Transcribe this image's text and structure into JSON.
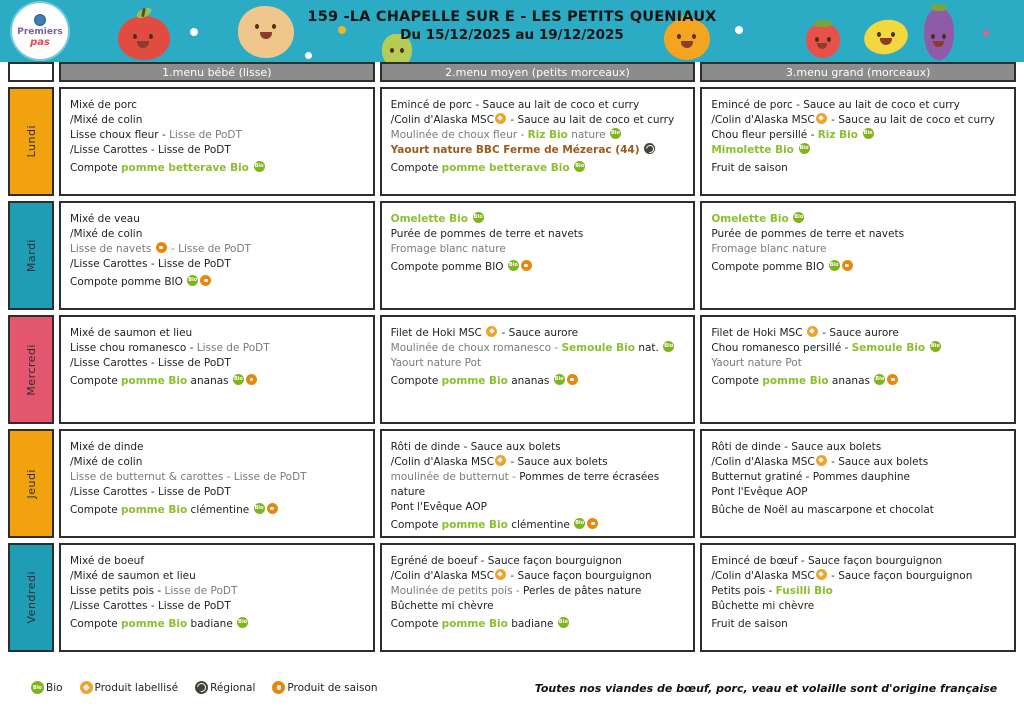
{
  "header": {
    "title": "159 -LA CHAPELLE SUR E - LES PETITS QUENIAUX",
    "subtitle": "Du 15/12/2025 au 19/12/2025",
    "logo": {
      "line1": "Premiers",
      "line2": "pas"
    }
  },
  "columns": [
    "1.menu bébé (lisse)",
    "2.menu moyen (petits morceaux)",
    "3.menu grand (morceaux)"
  ],
  "days": [
    {
      "name": "Lundi",
      "color": "#F2A20E",
      "menus": [
        [
          [
            {
              "t": "Mixé de porc"
            }
          ],
          [
            {
              "t": "/Mixé de colin"
            }
          ],
          [
            {
              "t": "Lisse choux fleur - "
            },
            {
              "t": "Lisse de PoDT",
              "s": "g"
            }
          ],
          [
            {
              "t": "/Lisse Carottes - Lisse de PoDT"
            }
          ],
          [
            {
              "t": "Compote "
            },
            {
              "t": "pomme betterave Bio ",
              "s": "bio"
            },
            {
              "i": "bio"
            }
          ]
        ],
        [
          [
            {
              "t": "Emincé de porc - Sauce au lait de coco et curry"
            }
          ],
          [
            {
              "t": "/Colin d'Alaska MSC"
            },
            {
              "i": "label"
            },
            {
              "t": " - Sauce au lait de coco et curry"
            }
          ],
          [
            {
              "t": "Moulinée de choux fleur - ",
              "s": "g"
            },
            {
              "t": "Riz Bio",
              "s": "bio"
            },
            {
              "t": " nature ",
              "s": "g"
            },
            {
              "i": "bio"
            }
          ],
          [
            {
              "t": "Yaourt nature BBC Ferme de Mézerac (44) ",
              "s": "brown"
            },
            {
              "i": "regional"
            }
          ],
          [
            {
              "t": "Compote "
            },
            {
              "t": "pomme betterave Bio ",
              "s": "bio"
            },
            {
              "i": "bio"
            }
          ]
        ],
        [
          [
            {
              "t": "Emincé de porc - Sauce au lait de coco et curry"
            }
          ],
          [
            {
              "t": "/Colin d'Alaska MSC"
            },
            {
              "i": "label"
            },
            {
              "t": " - Sauce au lait de coco et curry"
            }
          ],
          [
            {
              "t": "Chou fleur persillé - "
            },
            {
              "t": "Riz Bio ",
              "s": "bio"
            },
            {
              "i": "bio"
            }
          ],
          [
            {
              "t": "Mimolette Bio ",
              "s": "bio"
            },
            {
              "i": "bio"
            }
          ],
          [
            {
              "t": "Fruit de saison"
            }
          ]
        ]
      ]
    },
    {
      "name": "Mardi",
      "color": "#1E9DB5",
      "menus": [
        [
          [
            {
              "t": "Mixé de veau"
            }
          ],
          [
            {
              "t": "/Mixé de colin"
            }
          ],
          [
            {
              "t": "Lisse de navets ",
              "s": "g"
            },
            {
              "i": "season"
            },
            {
              "t": " - Lisse de PoDT",
              "s": "g"
            }
          ],
          [
            {
              "t": "/Lisse Carottes - Lisse de PoDT"
            }
          ],
          [
            {
              "t": "Compote pomme BIO "
            },
            {
              "i": "bio"
            },
            {
              "i": "season"
            }
          ]
        ],
        [
          [
            {
              "t": "Omelette Bio ",
              "s": "bio"
            },
            {
              "i": "bio"
            }
          ],
          [
            {
              "t": "Purée de pommes de terre et navets"
            }
          ],
          [
            {
              "t": "Fromage blanc nature",
              "s": "g"
            }
          ],
          [
            {
              "t": "Compote pomme BIO "
            },
            {
              "i": "bio"
            },
            {
              "i": "season"
            }
          ]
        ],
        [
          [
            {
              "t": "Omelette Bio ",
              "s": "bio"
            },
            {
              "i": "bio"
            }
          ],
          [
            {
              "t": "Purée de pommes de terre et navets"
            }
          ],
          [
            {
              "t": "Fromage blanc nature",
              "s": "g"
            }
          ],
          [
            {
              "t": "Compote pomme BIO "
            },
            {
              "i": "bio"
            },
            {
              "i": "season"
            }
          ]
        ]
      ]
    },
    {
      "name": "Mercredi",
      "color": "#E4556E",
      "menus": [
        [
          [
            {
              "t": "Mixé de saumon et lieu"
            }
          ],
          [
            {
              "t": "Lisse chou romanesco - "
            },
            {
              "t": "Lisse de PoDT",
              "s": "g"
            }
          ],
          [
            {
              "t": "/Lisse Carottes - Lisse de PoDT"
            }
          ],
          [
            {
              "t": "Compote "
            },
            {
              "t": "pomme Bio",
              "s": "bio"
            },
            {
              "t": " ananas "
            },
            {
              "i": "bio"
            },
            {
              "i": "season"
            }
          ]
        ],
        [
          [
            {
              "t": "Filet de Hoki MSC "
            },
            {
              "i": "label"
            },
            {
              "t": " - Sauce aurore"
            }
          ],
          [
            {
              "t": "Moulinée de choux romanesco - ",
              "s": "g"
            },
            {
              "t": "Semoule Bio",
              "s": "bio"
            },
            {
              "t": " nat. "
            },
            {
              "i": "bio"
            }
          ],
          [
            {
              "t": "Yaourt nature Pot",
              "s": "g"
            }
          ],
          [
            {
              "t": "Compote "
            },
            {
              "t": "pomme Bio",
              "s": "bio"
            },
            {
              "t": " ananas "
            },
            {
              "i": "bio"
            },
            {
              "i": "season"
            }
          ]
        ],
        [
          [
            {
              "t": "Filet de Hoki MSC "
            },
            {
              "i": "label"
            },
            {
              "t": " - Sauce aurore"
            }
          ],
          [
            {
              "t": "Chou romanesco persillé - "
            },
            {
              "t": "Semoule Bio ",
              "s": "bio"
            },
            {
              "i": "bio"
            }
          ],
          [
            {
              "t": "Yaourt nature Pot",
              "s": "g"
            }
          ],
          [
            {
              "t": "Compote "
            },
            {
              "t": "pomme Bio",
              "s": "bio"
            },
            {
              "t": " ananas "
            },
            {
              "i": "bio"
            },
            {
              "i": "season"
            }
          ]
        ]
      ]
    },
    {
      "name": "Jeudi",
      "color": "#F2A20E",
      "menus": [
        [
          [
            {
              "t": "Mixé de dinde"
            }
          ],
          [
            {
              "t": "/Mixé de colin"
            }
          ],
          [
            {
              "t": "Lisse de butternut & carottes - Lisse de PoDT",
              "s": "g"
            }
          ],
          [
            {
              "t": "/Lisse Carottes - Lisse de PoDT"
            }
          ],
          [
            {
              "t": "Compote "
            },
            {
              "t": "pomme Bio",
              "s": "bio"
            },
            {
              "t": " clémentine "
            },
            {
              "i": "bio"
            },
            {
              "i": "season"
            }
          ]
        ],
        [
          [
            {
              "t": "Rôti de dinde - Sauce aux bolets"
            }
          ],
          [
            {
              "t": "/Colin d'Alaska MSC"
            },
            {
              "i": "label"
            },
            {
              "t": " - Sauce aux bolets"
            }
          ],
          [
            {
              "t": "moulinée de butternut - ",
              "s": "g"
            },
            {
              "t": "Pommes de terre écrasées nature"
            }
          ],
          [
            {
              "t": "Pont l'Evêque AOP"
            }
          ],
          [
            {
              "t": "Compote "
            },
            {
              "t": "pomme Bio",
              "s": "bio"
            },
            {
              "t": " clémentine "
            },
            {
              "i": "bio"
            },
            {
              "i": "season"
            }
          ]
        ],
        [
          [
            {
              "t": "Rôti de dinde - Sauce aux bolets"
            }
          ],
          [
            {
              "t": "/Colin d'Alaska MSC"
            },
            {
              "i": "label"
            },
            {
              "t": " - Sauce aux bolets"
            }
          ],
          [
            {
              "t": "Butternut gratiné - Pommes dauphine"
            }
          ],
          [
            {
              "t": "Pont l'Evêque AOP"
            }
          ],
          [
            {
              "t": "Bûche de Noël au mascarpone et chocolat"
            }
          ]
        ]
      ]
    },
    {
      "name": "Vendredi",
      "color": "#1E9DB5",
      "menus": [
        [
          [
            {
              "t": "Mixé de boeuf"
            }
          ],
          [
            {
              "t": "/Mixé de saumon et lieu"
            }
          ],
          [
            {
              "t": "Lisse petits pois - "
            },
            {
              "t": "Lisse de PoDT",
              "s": "g"
            }
          ],
          [
            {
              "t": "/Lisse Carottes - Lisse de PoDT"
            }
          ],
          [
            {
              "t": "Compote "
            },
            {
              "t": "pomme Bio",
              "s": "bio"
            },
            {
              "t": " badiane "
            },
            {
              "i": "bio"
            }
          ]
        ],
        [
          [
            {
              "t": "Egréné de boeuf - Sauce façon bourguignon"
            }
          ],
          [
            {
              "t": "/Colin d'Alaska MSC"
            },
            {
              "i": "label"
            },
            {
              "t": " - Sauce façon bourguignon"
            }
          ],
          [
            {
              "t": "Moulinée de petits pois - ",
              "s": "g"
            },
            {
              "t": "Perles de pâtes nature"
            }
          ],
          [
            {
              "t": "Bûchette mi chèvre"
            }
          ],
          [
            {
              "t": "Compote "
            },
            {
              "t": "pomme Bio",
              "s": "bio"
            },
            {
              "t": " badiane "
            },
            {
              "i": "bio"
            }
          ]
        ],
        [
          [
            {
              "t": "Emincé de bœuf - Sauce façon bourguignon"
            }
          ],
          [
            {
              "t": "/Colin d'Alaska MSC"
            },
            {
              "i": "label"
            },
            {
              "t": " - Sauce façon bourguignon"
            }
          ],
          [
            {
              "t": "Petits pois - "
            },
            {
              "t": "Fusilli Bio",
              "s": "bio"
            }
          ],
          [
            {
              "t": "Bûchette mi chèvre"
            }
          ],
          [
            {
              "t": "Fruit de saison"
            }
          ]
        ]
      ]
    }
  ],
  "legend": [
    {
      "label": "Bio",
      "icon": "bio"
    },
    {
      "label": "Produit labellisé",
      "icon": "label"
    },
    {
      "label": "Régional",
      "icon": "regional"
    },
    {
      "label": "Produit de saison",
      "icon": "season"
    }
  ],
  "footer_note": "Toutes nos viandes de bœuf, porc, veau et volaille sont d'origine française"
}
